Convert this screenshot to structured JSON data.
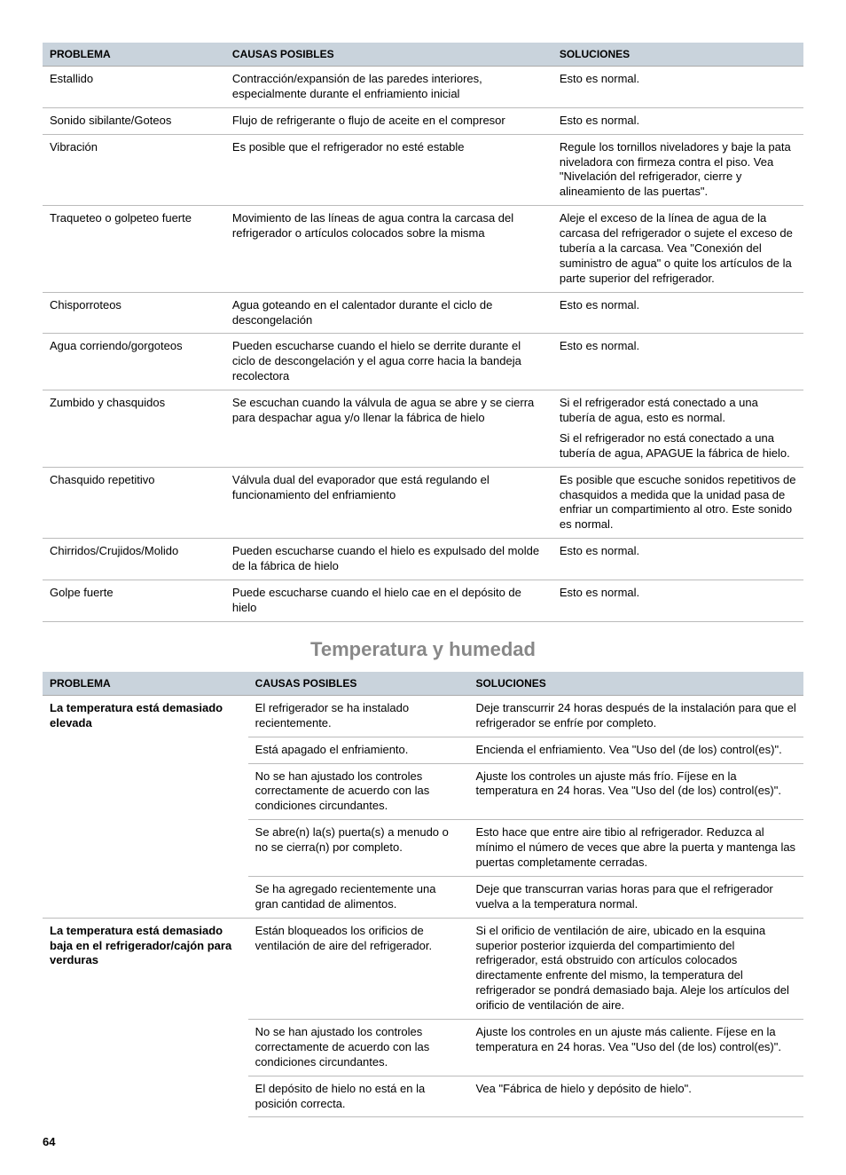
{
  "headers": {
    "problema": "PROBLEMA",
    "causas": "CAUSAS POSIBLES",
    "soluciones": "SOLUCIONES"
  },
  "section_title": "Temperatura y humedad",
  "page_number": "64",
  "t1": {
    "r1": {
      "p": "Estallido",
      "c": "Contracción/expansión de las paredes interiores, especialmente durante el enfriamiento inicial",
      "s": "Esto es normal."
    },
    "r2": {
      "p": "Sonido sibilante/Goteos",
      "c": "Flujo de refrigerante o flujo de aceite en el compresor",
      "s": "Esto es normal."
    },
    "r3": {
      "p": "Vibración",
      "c": "Es posible que el refrigerador no esté estable",
      "s": "Regule los tornillos niveladores y baje la pata niveladora con firmeza contra el piso. Vea \"Nivelación del refrigerador, cierre y alineamiento de las puertas\"."
    },
    "r4": {
      "p": "Traqueteo o golpeteo fuerte",
      "c": "Movimiento de las líneas de agua contra la carcasa del refrigerador o artículos colocados sobre la misma",
      "s": "Aleje el exceso de la línea de agua de la carcasa del refrigerador o sujete el exceso de tubería a la carcasa. Vea \"Conexión del suministro de agua\" o quite los artículos de la parte superior del refrigerador."
    },
    "r5": {
      "p": "Chisporroteos",
      "c": "Agua goteando en el calentador durante el ciclo de descongelación",
      "s": "Esto es normal."
    },
    "r6": {
      "p": "Agua corriendo/gorgoteos",
      "c": "Pueden escucharse cuando el hielo se derrite durante el ciclo de descongelación y el agua corre hacia la bandeja recolectora",
      "s": "Esto es normal."
    },
    "r7": {
      "p": "Zumbido y chasquidos",
      "c": "Se escuchan cuando la válvula de agua se abre y se cierra para despachar agua y/o llenar la fábrica de hielo",
      "s1": "Si el refrigerador está conectado a una tubería de agua, esto es normal.",
      "s2": "Si el refrigerador no está conectado a una tubería de agua, APAGUE la fábrica de hielo."
    },
    "r8": {
      "p": "Chasquido repetitivo",
      "c": "Válvula dual del evaporador que está regulando el funcionamiento del enfriamiento",
      "s": "Es posible que escuche sonidos repetitivos de chasquidos a medida que la unidad pasa de enfriar un compartimiento al otro. Este sonido es normal."
    },
    "r9": {
      "p": "Chirridos/Crujidos/Molido",
      "c": "Pueden escucharse cuando el hielo es expulsado del molde de la fábrica de hielo",
      "s": "Esto es normal."
    },
    "r10": {
      "p": "Golpe fuerte",
      "c": "Puede escucharse cuando el hielo cae en el depósito de hielo",
      "s": "Esto es normal."
    }
  },
  "t2": {
    "g1": {
      "p": "La temperatura está demasiado elevada",
      "r1": {
        "c": "El refrigerador se ha instalado recientemente.",
        "s": "Deje transcurrir 24 horas después de la instalación para que el refrigerador se enfríe por completo."
      },
      "r2": {
        "c": "Está apagado el enfriamiento.",
        "s": "Encienda el enfriamiento. Vea \"Uso del (de los) control(es)\"."
      },
      "r3": {
        "c": "No se han ajustado los controles correctamente de acuerdo con las condiciones circundantes.",
        "s": "Ajuste los controles un ajuste más frío. Fíjese en la temperatura en 24 horas. Vea \"Uso del (de los) control(es)\"."
      },
      "r4": {
        "c": "Se abre(n) la(s) puerta(s) a menudo o no se cierra(n) por completo.",
        "s": "Esto hace que entre aire tibio al refrigerador. Reduzca al mínimo el número de veces que abre la puerta y mantenga las puertas completamente cerradas."
      },
      "r5": {
        "c": "Se ha agregado recientemente una gran cantidad de alimentos.",
        "s": "Deje que transcurran varias horas para que el refrigerador vuelva a la temperatura normal."
      }
    },
    "g2": {
      "p": "La temperatura está demasiado baja en el refrigerador/cajón para verduras",
      "r1": {
        "c": "Están bloqueados los orificios de ventilación de aire del refrigerador.",
        "s": "Si el orificio de ventilación de aire, ubicado en la esquina superior posterior izquierda del compartimiento del refrigerador, está obstruido con artículos colocados directamente enfrente del mismo, la temperatura del refrigerador se pondrá demasiado baja. Aleje los artículos del orificio de ventilación de aire."
      },
      "r2": {
        "c": "No se han ajustado los controles correctamente de acuerdo con las condiciones circundantes.",
        "s": "Ajuste los controles en un ajuste más caliente. Fíjese en la temperatura en 24 horas. Vea \"Uso del (de los) control(es)\"."
      },
      "r3": {
        "c": "El depósito de hielo no está en la posición correcta.",
        "s": "Vea \"Fábrica de hielo y depósito de hielo\"."
      }
    }
  }
}
